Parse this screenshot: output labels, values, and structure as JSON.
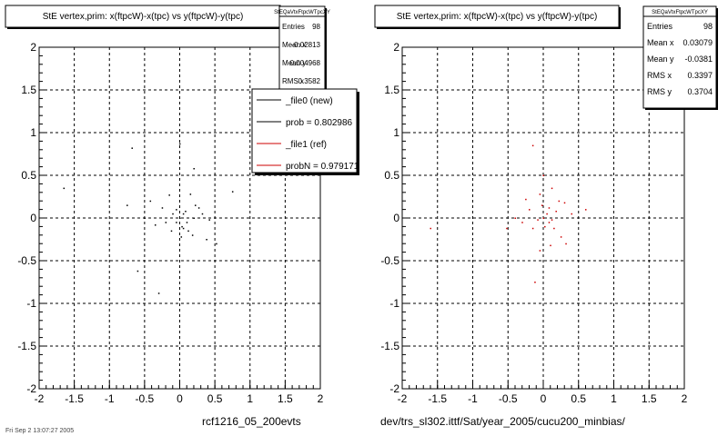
{
  "chart_data": [
    {
      "type": "scatter",
      "title": "StE  vertex,prim: x(ftpcW)-x(tpc) vs y(ftpcW)-y(tpc)",
      "xlim": [
        -2,
        2
      ],
      "ylim": [
        -2,
        2
      ],
      "x_ticks": [
        "-2",
        "-1.5",
        "-1",
        "-0.5",
        "0",
        "0.5",
        "1",
        "1.5",
        "2"
      ],
      "y_ticks": [
        "2",
        "1.5",
        "1",
        "0.5",
        "0",
        "-0.5",
        "-1",
        "-1.5",
        "-2"
      ],
      "grid": true,
      "stats": {
        "header": "StEQaVtxFtpcWTpcXY",
        "rows": [
          {
            "label": "Entries",
            "value": "98"
          },
          {
            "label": "Mean x",
            "value": "-0.02813"
          },
          {
            "label": "Mean y",
            "value": "0.004968"
          },
          {
            "label": "RMS x",
            "value": "0.3582"
          }
        ]
      },
      "legend": {
        "position": "top-right",
        "entries": [
          {
            "label": "_file0 (new)",
            "color": "#000000"
          },
          {
            "label": "prob = 0.802986",
            "color": "#000000"
          },
          {
            "label": "_file1 (ref)",
            "color": "#cc0000"
          },
          {
            "label": "probN = 0.979171",
            "color": "#cc0000"
          }
        ]
      },
      "footer": "rcf1216_05_200evts",
      "marker_color": "#000000",
      "points": [
        [
          -1.65,
          0.35
        ],
        [
          -0.68,
          0.82
        ],
        [
          0.0,
          0.87
        ],
        [
          0.2,
          0.58
        ],
        [
          0.75,
          0.31
        ],
        [
          -0.75,
          0.15
        ],
        [
          -0.42,
          0.2
        ],
        [
          -0.15,
          0.27
        ],
        [
          0.15,
          0.28
        ],
        [
          0.27,
          0.12
        ],
        [
          0.22,
          0.15
        ],
        [
          0.05,
          0.05
        ],
        [
          0.0,
          0.0
        ],
        [
          -0.05,
          -0.05
        ],
        [
          0.03,
          -0.1
        ],
        [
          0.1,
          -0.05
        ],
        [
          -0.1,
          0.05
        ],
        [
          -0.2,
          -0.05
        ],
        [
          -0.35,
          -0.08
        ],
        [
          0.32,
          0.05
        ],
        [
          0.42,
          -0.02
        ],
        [
          0.38,
          -0.25
        ],
        [
          0.52,
          -0.3
        ],
        [
          0.12,
          -0.15
        ],
        [
          -0.05,
          0.1
        ],
        [
          0.08,
          0.08
        ],
        [
          -0.5,
          0.0
        ],
        [
          -0.6,
          -0.62
        ],
        [
          -0.3,
          -0.88
        ],
        [
          0.02,
          -0.22
        ],
        [
          0.18,
          -0.2
        ],
        [
          -0.12,
          -0.15
        ],
        [
          0.05,
          -0.12
        ],
        [
          0.2,
          0.0
        ],
        [
          -0.25,
          0.12
        ]
      ]
    },
    {
      "type": "scatter",
      "title": "StE  vertex,prim: x(ftpcW)-x(tpc) vs y(ftpcW)-y(tpc)",
      "xlim": [
        -2,
        2
      ],
      "ylim": [
        -2,
        2
      ],
      "x_ticks": [
        "-2",
        "-1.5",
        "-1",
        "-0.5",
        "0",
        "0.5",
        "1",
        "1.5",
        "2"
      ],
      "y_ticks": [
        "2",
        "1.5",
        "1",
        "0.5",
        "0",
        "-0.5",
        "-1",
        "-1.5",
        "-2"
      ],
      "grid": true,
      "stats": {
        "header": "StEQaVtxFtpcWTpcXY",
        "rows": [
          {
            "label": "Entries",
            "value": "98"
          },
          {
            "label": "Mean x",
            "value": "0.03079"
          },
          {
            "label": "Mean y",
            "value": "-0.0381"
          },
          {
            "label": "RMS x",
            "value": "0.3397"
          },
          {
            "label": "RMS y",
            "value": "0.3704"
          }
        ]
      },
      "footer": "dev/trs_sl302.ittf/Sat/year_2005/cucu200_minbias/",
      "marker_color": "#cc0000",
      "points": [
        [
          -1.6,
          -0.12
        ],
        [
          -0.15,
          0.85
        ],
        [
          0.0,
          0.5
        ],
        [
          0.12,
          0.35
        ],
        [
          -0.05,
          0.28
        ],
        [
          0.22,
          0.2
        ],
        [
          0.3,
          0.18
        ],
        [
          -0.2,
          0.1
        ],
        [
          0.05,
          0.05
        ],
        [
          0.0,
          0.0
        ],
        [
          -0.08,
          -0.02
        ],
        [
          0.08,
          -0.05
        ],
        [
          -0.15,
          -0.12
        ],
        [
          0.15,
          -0.12
        ],
        [
          0.18,
          0.08
        ],
        [
          -0.3,
          -0.05
        ],
        [
          -0.4,
          0.0
        ],
        [
          -0.52,
          -0.12
        ],
        [
          0.25,
          -0.22
        ],
        [
          0.32,
          -0.3
        ],
        [
          0.1,
          -0.32
        ],
        [
          -0.05,
          -0.38
        ],
        [
          -0.12,
          -0.75
        ],
        [
          0.02,
          -0.1
        ],
        [
          0.4,
          0.05
        ],
        [
          0.08,
          0.12
        ],
        [
          -0.02,
          0.15
        ],
        [
          0.6,
          0.1
        ],
        [
          -0.25,
          0.22
        ],
        [
          0.12,
          -0.02
        ]
      ]
    }
  ],
  "print_date": "Fri Sep  2 13:07:27 2005"
}
